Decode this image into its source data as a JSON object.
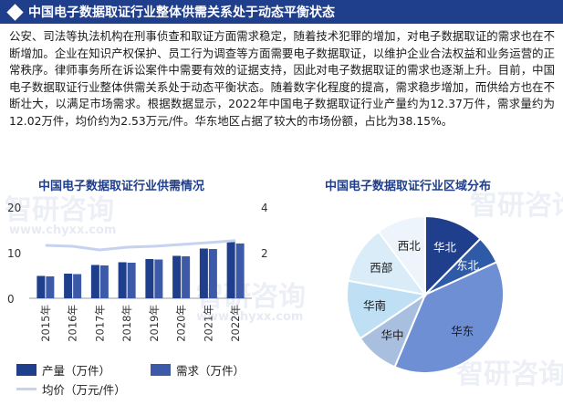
{
  "header": {
    "title": "中国电子数据取证行业整体供需关系处于动态平衡状态"
  },
  "paragraph": "公安、司法等执法机构在刑事侦查和取证方面需求稳定，随着技术犯罪的增加，对电子数据取证的需求也在不断增加。企业在知识产权保护、员工行为调查等方面需要电子数据取证，以维护企业合法权益和业务运营的正常秩序。律师事务所在诉讼案件中需要有效的证据支持，因此对电子数据取证的需求也逐渐上升。目前，中国电子数据取证行业整体供需关系处于动态平衡状态。随着数字化程度的提高，需求稳步增加，而供给方也在不断壮大，以满足市场需求。根据数据显示，2022年中国电子数据取证行业产量约为12.37万件，需求量约为12.02万件，均价约为2.53万元/件。华东地区占据了较大的市场份额，占比为38.15%。",
  "watermark": {
    "brand": "智研咨询",
    "url": "www.chyxx.com"
  },
  "colors": {
    "header_bg": "#1f3e8c",
    "production": "#1f3e8c",
    "demand": "#3d5aa8",
    "price_line": "#c5d3ef"
  },
  "chart_data": [
    {
      "type": "bar",
      "title": "中国电子数据取证行业供需情况",
      "categories": [
        "2015年",
        "2016年",
        "2017年",
        "2018年",
        "2019年",
        "2020年",
        "2021年",
        "2022年"
      ],
      "series": [
        {
          "name": "产量（万件）",
          "axis": "left",
          "values": [
            4.9,
            5.4,
            7.3,
            7.9,
            8.6,
            9.3,
            10.9,
            12.37
          ]
        },
        {
          "name": "需求（万件）",
          "axis": "left",
          "values": [
            4.8,
            5.3,
            7.2,
            7.8,
            8.5,
            9.2,
            10.8,
            12.02
          ]
        },
        {
          "name": "均价（万元/件）",
          "type": "line",
          "axis": "right",
          "values": [
            2.32,
            2.28,
            2.12,
            2.24,
            2.28,
            2.36,
            2.44,
            2.53
          ]
        }
      ],
      "y_left": {
        "ticks": [
          "0",
          "10",
          "20"
        ],
        "lim": [
          0,
          20
        ]
      },
      "y_right": {
        "ticks": [
          "2",
          "4"
        ],
        "lim": [
          0,
          4
        ]
      },
      "legend": "bottom-left"
    },
    {
      "type": "pie",
      "title": "中国电子数据取证行业区域分布",
      "labels": [
        "华北",
        "东北",
        "华东",
        "华中",
        "华南",
        "西部",
        "西北"
      ],
      "values": [
        12.4,
        5.8,
        38.15,
        9.2,
        12.3,
        12.0,
        10.15
      ],
      "colors": [
        "#1f3e8c",
        "#2e5aa8",
        "#6e8fd4",
        "#a9bfdf",
        "#bfe0f4",
        "#d9ecf8",
        "#eef4fb"
      ],
      "label_colors": [
        "#ffffff",
        "#ffffff",
        "#1a1a1a",
        "#1a1a1a",
        "#1a1a1a",
        "#1a1a1a",
        "#1a1a1a"
      ]
    }
  ]
}
